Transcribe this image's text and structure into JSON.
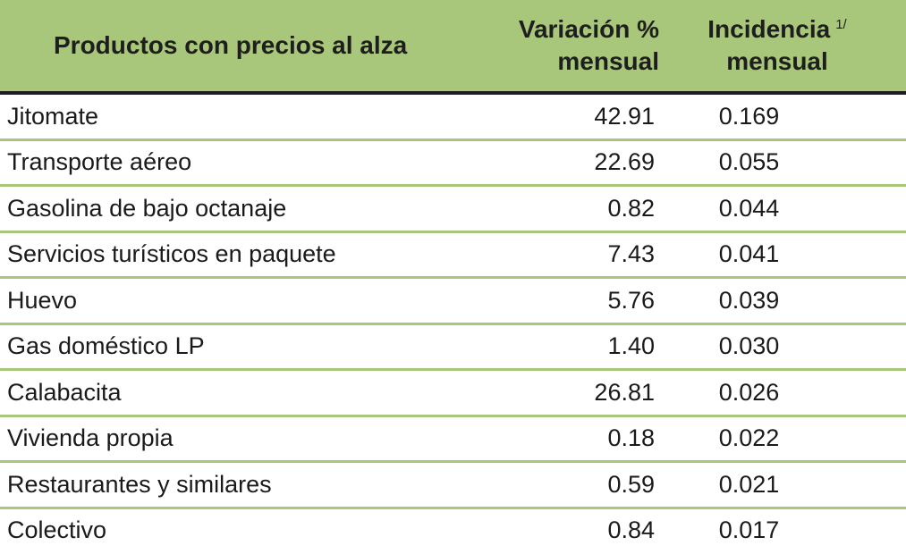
{
  "table": {
    "headers": {
      "product": "Productos con precios al alza",
      "variacion_line1": "Variación %",
      "variacion_line2": "mensual",
      "incidencia_line1": "Incidencia",
      "incidencia_note": "1/",
      "incidencia_line2": "mensual"
    },
    "rows": [
      {
        "product": "Jitomate",
        "variacion": "42.91",
        "incidencia": "0.169"
      },
      {
        "product": "Transporte aéreo",
        "variacion": "22.69",
        "incidencia": "0.055"
      },
      {
        "product": "Gasolina de bajo octanaje",
        "variacion": "0.82",
        "incidencia": "0.044"
      },
      {
        "product": "Servicios turísticos en paquete",
        "variacion": "7.43",
        "incidencia": "0.041"
      },
      {
        "product": "Huevo",
        "variacion": "5.76",
        "incidencia": "0.039"
      },
      {
        "product": "Gas doméstico LP",
        "variacion": "1.40",
        "incidencia": "0.030"
      },
      {
        "product": "Calabacita",
        "variacion": "26.81",
        "incidencia": "0.026"
      },
      {
        "product": "Vivienda propia",
        "variacion": "0.18",
        "incidencia": "0.022"
      },
      {
        "product": "Restaurantes y similares",
        "variacion": "0.59",
        "incidencia": "0.021"
      },
      {
        "product": "Colectivo",
        "variacion": "0.84",
        "incidencia": "0.017"
      }
    ]
  },
  "colors": {
    "header_bg": "#a8c77a",
    "row_divider": "#a8c77a",
    "header_rule": "#1e1e1e"
  }
}
